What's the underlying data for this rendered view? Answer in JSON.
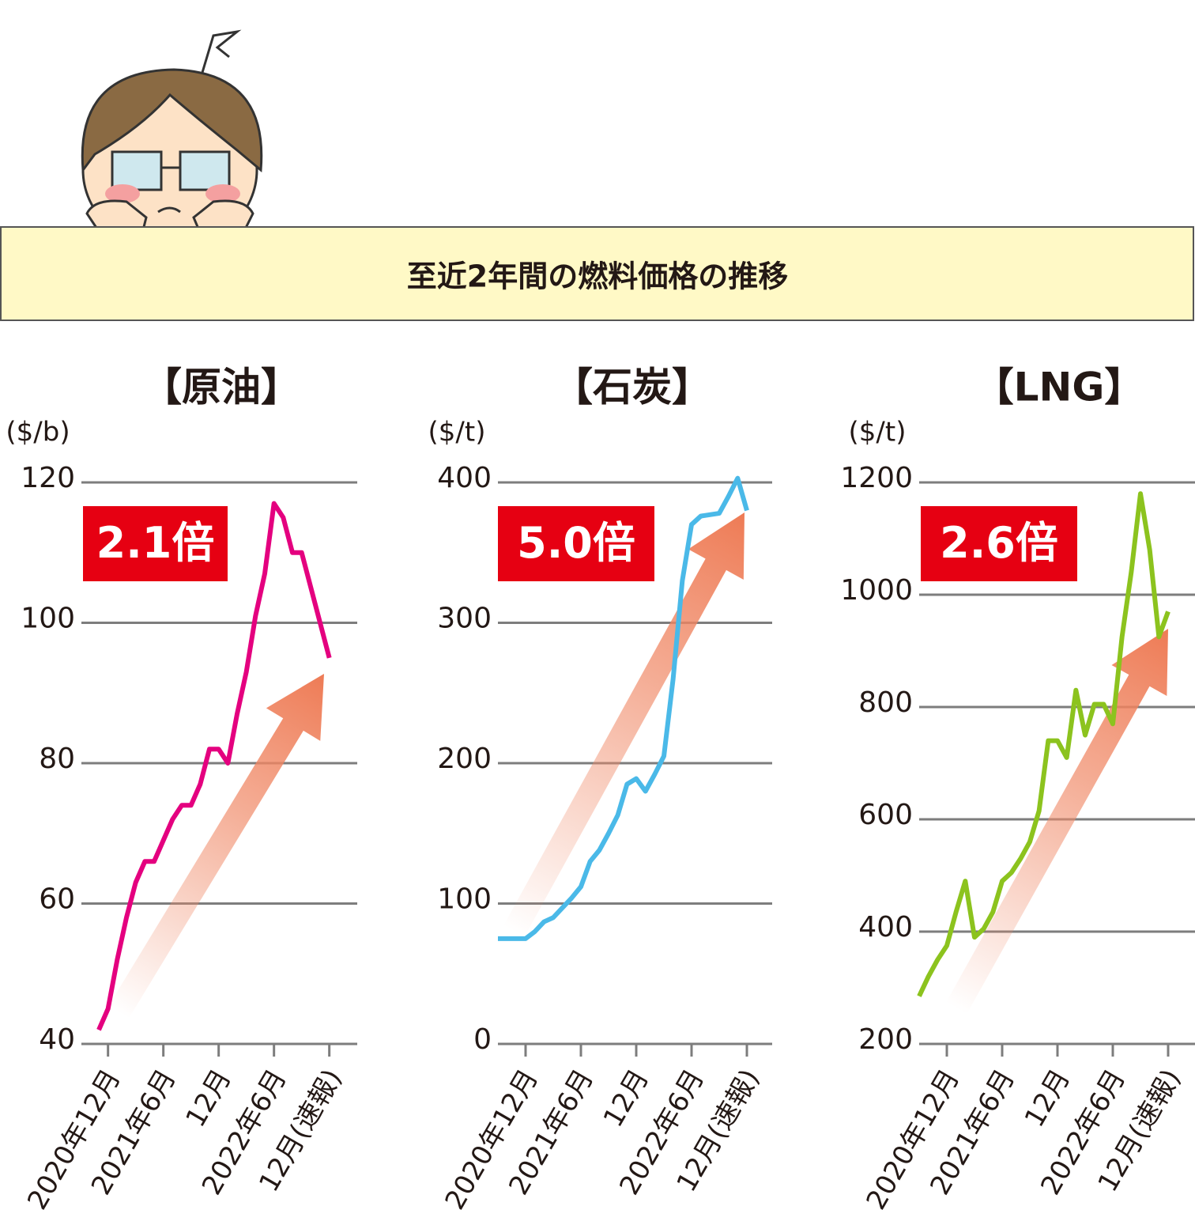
{
  "header": {
    "title": "至近2年間の燃料価格の推移"
  },
  "chart_data": [
    {
      "type": "line",
      "title": "【原油】",
      "y_label": "($/b)",
      "annotation": "2.1倍",
      "categories": [
        null,
        "2020年12月",
        null,
        null,
        null,
        null,
        null,
        "2021年6月",
        null,
        null,
        null,
        null,
        null,
        "12月",
        null,
        null,
        null,
        null,
        null,
        "2022年6月",
        null,
        null,
        null,
        null,
        null,
        "12月(速報)"
      ],
      "series": [
        {
          "color": "#e4007f",
          "values": [
            42,
            45,
            52,
            58,
            63,
            66,
            66,
            69,
            72,
            74,
            74,
            77,
            82,
            82,
            80,
            87,
            93,
            101,
            107,
            117,
            115,
            110,
            110,
            105,
            100,
            95
          ]
        }
      ],
      "ylim": [
        40,
        120
      ],
      "yticks": [
        40,
        60,
        80,
        100,
        120
      ],
      "grid": true
    },
    {
      "type": "line",
      "title": "【石炭】",
      "y_label": "($/t)",
      "annotation": "5.0倍",
      "categories": [
        null,
        null,
        null,
        "2020年12月",
        null,
        null,
        null,
        null,
        null,
        "2021年6月",
        null,
        null,
        null,
        null,
        null,
        "12月",
        null,
        null,
        null,
        null,
        null,
        "2022年6月",
        null,
        null,
        null,
        null,
        null,
        "12月(速報)"
      ],
      "series": [
        {
          "color": "#4ab9e8",
          "values": [
            75,
            75,
            75,
            75,
            80,
            87,
            90,
            97,
            104,
            112,
            130,
            138,
            150,
            163,
            185,
            189,
            180,
            192,
            205,
            260,
            330,
            370,
            376,
            377,
            378,
            390,
            403,
            380
          ]
        }
      ],
      "ylim": [
        0,
        400
      ],
      "yticks": [
        0,
        100,
        200,
        300,
        400
      ],
      "grid": true
    },
    {
      "type": "line",
      "title": "【LNG】",
      "y_label": "($/t)",
      "annotation": "2.6倍",
      "categories": [
        null,
        null,
        null,
        "2020年12月",
        null,
        null,
        null,
        null,
        null,
        "2021年6月",
        null,
        null,
        null,
        null,
        null,
        "12月",
        null,
        null,
        null,
        null,
        null,
        "2022年6月",
        null,
        null,
        null,
        null,
        null,
        "12月(速報)"
      ],
      "series": [
        {
          "color": "#8cc31e",
          "values": [
            285,
            320,
            350,
            375,
            435,
            490,
            390,
            405,
            435,
            490,
            505,
            530,
            560,
            615,
            740,
            740,
            710,
            830,
            750,
            805,
            805,
            770,
            925,
            1040,
            1180,
            1080,
            925,
            970
          ]
        }
      ],
      "ylim": [
        200,
        1200
      ],
      "yticks": [
        200,
        400,
        600,
        800,
        1000,
        1200
      ],
      "grid": true
    }
  ]
}
